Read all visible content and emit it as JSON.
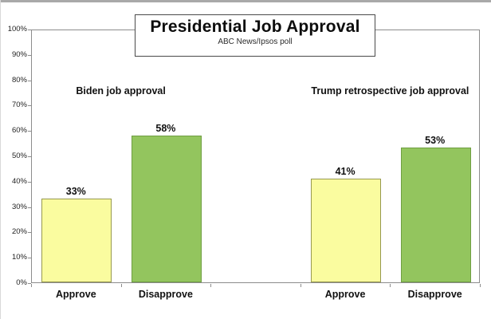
{
  "chart_data": {
    "type": "bar",
    "title": "Presidential Job Approval",
    "subtitle": "ABC News/Ipsos poll",
    "xlabel": "",
    "ylabel": "",
    "ylim": [
      0,
      100
    ],
    "ytick_values": [
      0,
      10,
      20,
      30,
      40,
      50,
      60,
      70,
      80,
      90,
      100
    ],
    "ytick_labels": [
      "0%",
      "10%",
      "20%",
      "30%",
      "40%",
      "50%",
      "60%",
      "70%",
      "80%",
      "90%",
      "100%"
    ],
    "grid": false,
    "legend": false,
    "groups": [
      {
        "label": "Biden job approval",
        "bars": [
          {
            "category": "Approve",
            "value": 33,
            "value_label": "33%",
            "fill": "#fafc9f",
            "border": "#97994f"
          },
          {
            "category": "Disapprove",
            "value": 58,
            "value_label": "58%",
            "fill": "#93c55e",
            "border": "#6f9e42"
          }
        ]
      },
      {
        "label": "Trump retrospective job approval",
        "bars": [
          {
            "category": "Approve",
            "value": 41,
            "value_label": "41%",
            "fill": "#fafc9f",
            "border": "#97994f"
          },
          {
            "category": "Disapprove",
            "value": 53,
            "value_label": "53%",
            "fill": "#93c55e",
            "border": "#6f9e42"
          }
        ]
      }
    ],
    "colors": {
      "approve_fill": "#fafc9f",
      "disapprove_fill": "#93c55e",
      "axis": "#8c8c8c",
      "text": "#111111"
    }
  }
}
